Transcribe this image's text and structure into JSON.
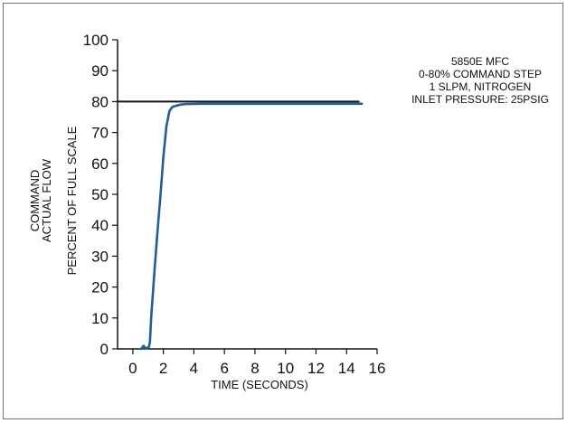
{
  "chart_data": {
    "type": "line",
    "xlabel": "TIME (SECONDS)",
    "ylabel_lines": [
      "COMMAND",
      "ACTUAL FLOW",
      "PERCENT OF FULL SCALE"
    ],
    "xlim": [
      -1,
      16
    ],
    "ylim": [
      0,
      100
    ],
    "x_ticks": [
      0,
      2,
      4,
      6,
      8,
      10,
      12,
      14,
      16
    ],
    "y_ticks": [
      0,
      10,
      20,
      30,
      40,
      50,
      60,
      70,
      80,
      90,
      100
    ],
    "annotation_lines": [
      "5850E MFC",
      "0-80% COMMAND STEP",
      "1 SLPM, NITROGEN",
      "INLET PRESSURE: 25PSIG"
    ],
    "series": [
      {
        "color": "#1f5d9c",
        "x": [
          0.55,
          0.7,
          0.85,
          0.95,
          1.05,
          1.12,
          1.2,
          1.4,
          1.6,
          1.8,
          2.0,
          2.2,
          2.4,
          2.6,
          2.8,
          3.1,
          3.5,
          4.5,
          6,
          8,
          10,
          12,
          14,
          15
        ],
        "y": [
          0,
          1.0,
          0.2,
          0.3,
          0.6,
          2.2,
          10,
          24,
          37,
          49,
          62,
          72,
          77,
          78.3,
          78.6,
          79.0,
          79.2,
          79.3,
          79.3,
          79.3,
          79.3,
          79.3,
          79.3,
          79.3
        ]
      },
      {
        "color": "#111111",
        "x": [
          -1,
          14.8
        ],
        "y": [
          80,
          80
        ]
      }
    ],
    "grid": false,
    "legend": "none"
  }
}
